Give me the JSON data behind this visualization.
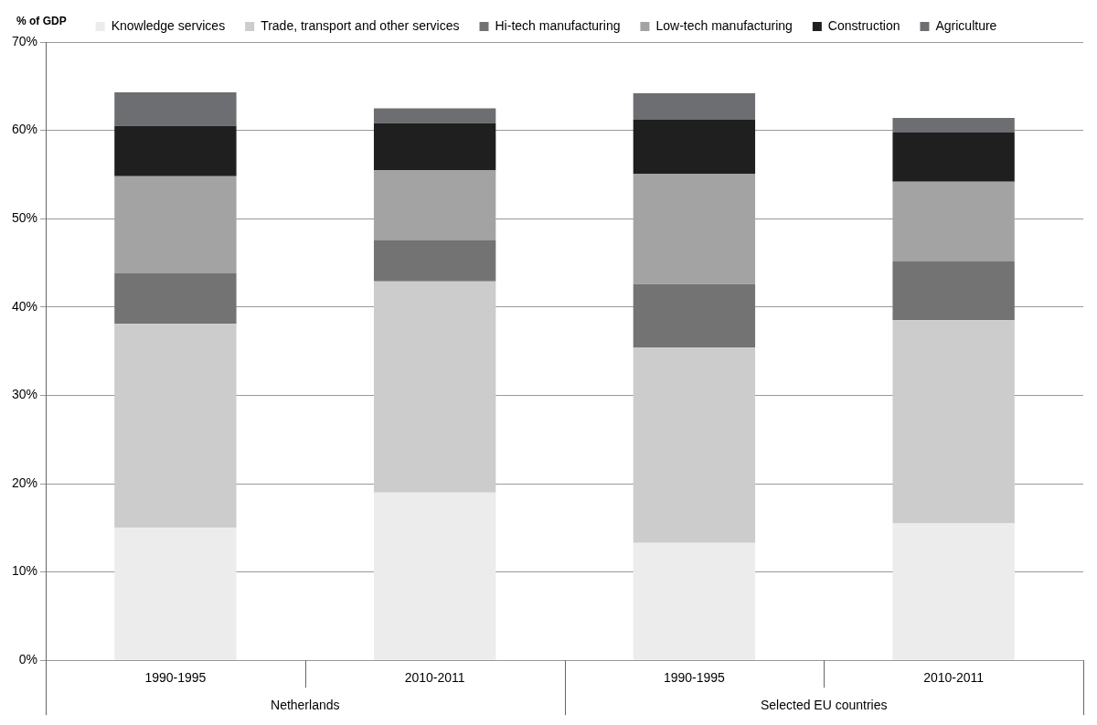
{
  "chart_data": {
    "type": "bar",
    "stacked": true,
    "ylabel": "% of GDP",
    "categories": [
      "1990-1995",
      "2010-2011",
      "1990-1995",
      "2010-2011"
    ],
    "annotations": [
      "Netherlands",
      "Selected EU countries"
    ],
    "series": [
      {
        "name": "Knowledge services",
        "color": "#ececec",
        "values": [
          15.0,
          19.0,
          13.3,
          15.5
        ]
      },
      {
        "name": "Trade, transport and other services",
        "color": "#cccccc",
        "values": [
          23.1,
          23.9,
          22.1,
          23.0
        ]
      },
      {
        "name": "Hi-tech manufacturing",
        "color": "#737373",
        "values": [
          5.7,
          4.7,
          7.2,
          6.7
        ]
      },
      {
        "name": "Low-tech manufacturing",
        "color": "#a3a3a3",
        "values": [
          11.0,
          7.9,
          12.5,
          9.0
        ]
      },
      {
        "name": "Construction",
        "color": "#1f1f1f",
        "values": [
          5.7,
          5.3,
          6.1,
          5.6
        ]
      },
      {
        "name": "Agriculture",
        "color": "#6d6e71",
        "values": [
          3.8,
          1.7,
          3.0,
          1.6
        ]
      }
    ],
    "ylim": [
      0,
      70
    ],
    "yticks": [
      {
        "value": 0,
        "label": "0%"
      },
      {
        "value": 10,
        "label": "10%"
      },
      {
        "value": 20,
        "label": "20%"
      },
      {
        "value": 30,
        "label": "30%"
      },
      {
        "value": 40,
        "label": "40%"
      },
      {
        "value": 50,
        "label": "50%"
      },
      {
        "value": 60,
        "label": "60%"
      },
      {
        "value": 70,
        "label": "70%"
      }
    ],
    "grid": "y",
    "legend": "top"
  }
}
